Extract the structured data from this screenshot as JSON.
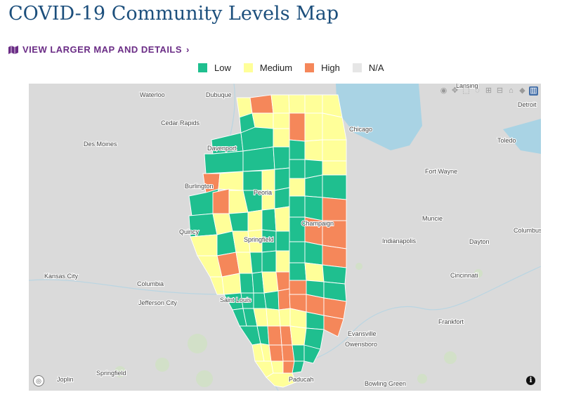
{
  "title": "COVID-19 Community Levels Map",
  "link": {
    "label": "VIEW LARGER MAP AND DETAILS",
    "icon": "map-icon",
    "chevron": "›"
  },
  "legend": [
    {
      "label": "Low",
      "color": "#1fbf8f"
    },
    {
      "label": "Medium",
      "color": "#ffff99"
    },
    {
      "label": "High",
      "color": "#f5875a"
    },
    {
      "label": "N/A",
      "color": "#e6e6e6"
    }
  ],
  "colors": {
    "Low": "#1fbf8f",
    "Medium": "#ffff99",
    "High": "#f5875a",
    "NA": "#e6e6e6",
    "water": "#a9d3e4",
    "land": "#dadada"
  },
  "cities": [
    {
      "name": "Waterloo"
    },
    {
      "name": "Dubuque"
    },
    {
      "name": "Cedar Rapids"
    },
    {
      "name": "Des Moines"
    },
    {
      "name": "Davenport"
    },
    {
      "name": "Burlington"
    },
    {
      "name": "Peoria"
    },
    {
      "name": "Quincy"
    },
    {
      "name": "Springfield"
    },
    {
      "name": "Champaign"
    },
    {
      "name": "Chicago"
    },
    {
      "name": "Toledo"
    },
    {
      "name": "Detroit"
    },
    {
      "name": "Fort Wayne"
    },
    {
      "name": "Muncie"
    },
    {
      "name": "Columbus"
    },
    {
      "name": "Indianapolis"
    },
    {
      "name": "Dayton"
    },
    {
      "name": "Kansas City"
    },
    {
      "name": "Columbia"
    },
    {
      "name": "Jefferson City"
    },
    {
      "name": "Saint Louis"
    },
    {
      "name": "Cincinnati"
    },
    {
      "name": "Frankfort"
    },
    {
      "name": "Evansville"
    },
    {
      "name": "Owensboro"
    },
    {
      "name": "Joplin"
    },
    {
      "name": "Springfield"
    },
    {
      "name": "Paducah"
    },
    {
      "name": "Bowling Green"
    },
    {
      "name": "Lansing"
    }
  ],
  "toolbar": [
    {
      "name": "camera-icon",
      "glyph": "◉"
    },
    {
      "name": "pan-icon",
      "glyph": "✥"
    },
    {
      "name": "box-select-icon",
      "glyph": "⬚"
    },
    {
      "name": "lasso-icon",
      "glyph": "◌"
    },
    {
      "name": "zoom-in-icon",
      "glyph": "⊞"
    },
    {
      "name": "zoom-out-icon",
      "glyph": "⊟"
    },
    {
      "name": "home-icon",
      "glyph": "⌂"
    },
    {
      "name": "tag-icon",
      "glyph": "◆"
    },
    {
      "name": "plotly-logo-icon",
      "glyph": "▥"
    }
  ]
}
